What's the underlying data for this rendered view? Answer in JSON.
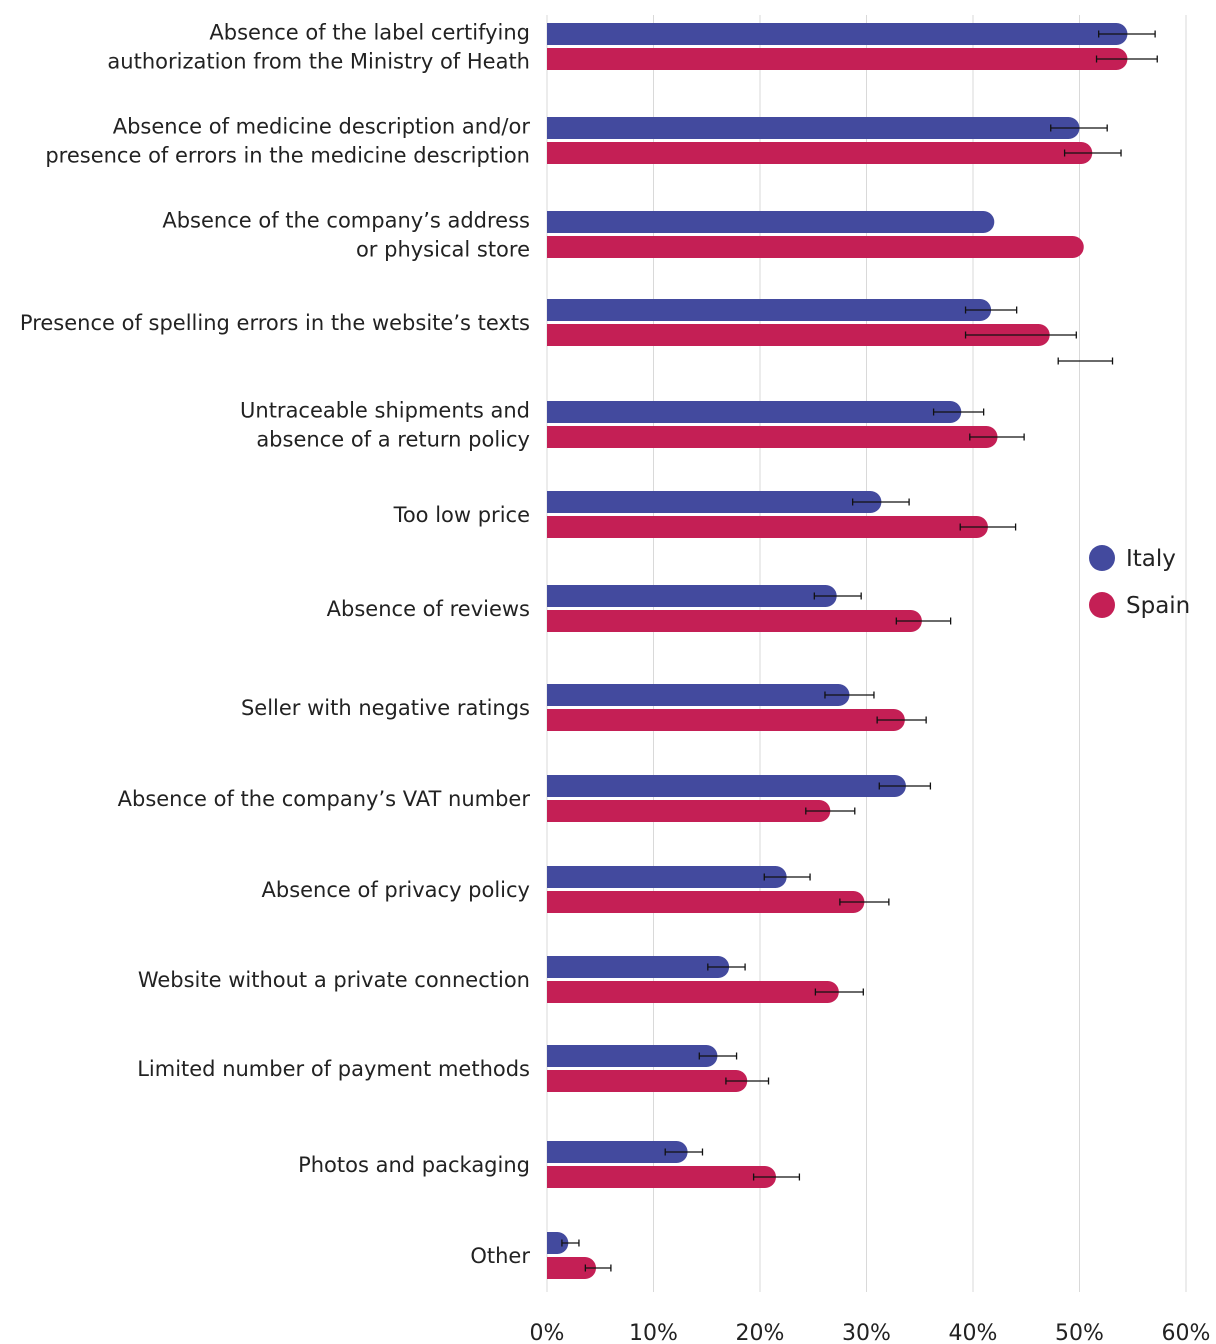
{
  "chart_data": {
    "type": "bar",
    "orientation": "horizontal",
    "categories": [
      [
        "Absence of the label certifying",
        "authorization from the Ministry of Heath"
      ],
      [
        "Absence of medicine description and/or",
        "presence of errors in the medicine description"
      ],
      [
        "Absence of the company’s address",
        "or physical store"
      ],
      [
        "Presence of spelling errors in the website’s texts"
      ],
      [
        "Untraceable shipments and",
        "absence of a return policy"
      ],
      [
        "Too low price"
      ],
      [
        "Absence of reviews"
      ],
      [
        "Seller with negative ratings"
      ],
      [
        "Absence of the company’s VAT number"
      ],
      [
        "Absence of privacy policy"
      ],
      [
        "Website without a private connection"
      ],
      [
        "Limited number of payment methods"
      ],
      [
        "Photos and packaging"
      ],
      [
        "Other"
      ]
    ],
    "series": [
      {
        "name": "Italy",
        "color": "#434a9e",
        "values": [
          54.5,
          50.0,
          42.0,
          41.7,
          38.9,
          31.4,
          27.2,
          28.4,
          33.7,
          22.5,
          17.1,
          16.0,
          13.2,
          2.0
        ],
        "errors": [
          [
            51.8,
            57.1
          ],
          [
            47.3,
            52.6
          ],
          null,
          [
            39.3,
            44.1
          ],
          [
            36.3,
            41.0
          ],
          [
            28.7,
            34.0
          ],
          [
            25.1,
            29.5
          ],
          [
            26.1,
            30.7
          ],
          [
            31.2,
            36.0
          ],
          [
            20.4,
            24.7
          ],
          [
            15.1,
            18.6
          ],
          [
            14.3,
            17.8
          ],
          [
            11.1,
            14.6
          ],
          [
            1.4,
            3.0
          ]
        ]
      },
      {
        "name": "Spain",
        "color": "#c41f55",
        "values": [
          54.5,
          51.2,
          50.4,
          47.2,
          42.3,
          41.4,
          35.2,
          33.6,
          26.6,
          29.8,
          27.4,
          18.8,
          21.5,
          4.6
        ],
        "errors": [
          [
            51.6,
            57.3
          ],
          [
            48.6,
            53.9
          ],
          null,
          [
            39.3,
            49.7
          ],
          [
            39.7,
            44.8
          ],
          [
            38.8,
            44.0
          ],
          [
            32.8,
            37.9
          ],
          [
            31.0,
            35.6
          ],
          [
            24.3,
            28.9
          ],
          [
            27.5,
            32.1
          ],
          [
            25.2,
            29.7
          ],
          [
            16.8,
            20.8
          ],
          [
            19.4,
            23.7
          ],
          [
            3.6,
            6.0
          ]
        ]
      }
    ],
    "extra_errors": [
      {
        "category_index": 3,
        "range": [
          48.0,
          53.1
        ]
      }
    ],
    "x_ticks": [
      "0%",
      "10%",
      "20%",
      "30%",
      "40%",
      "50%",
      "60%"
    ],
    "xlim": [
      0,
      60
    ],
    "grid": true,
    "legend": "right",
    "title": "",
    "xlabel": "",
    "ylabel": ""
  }
}
